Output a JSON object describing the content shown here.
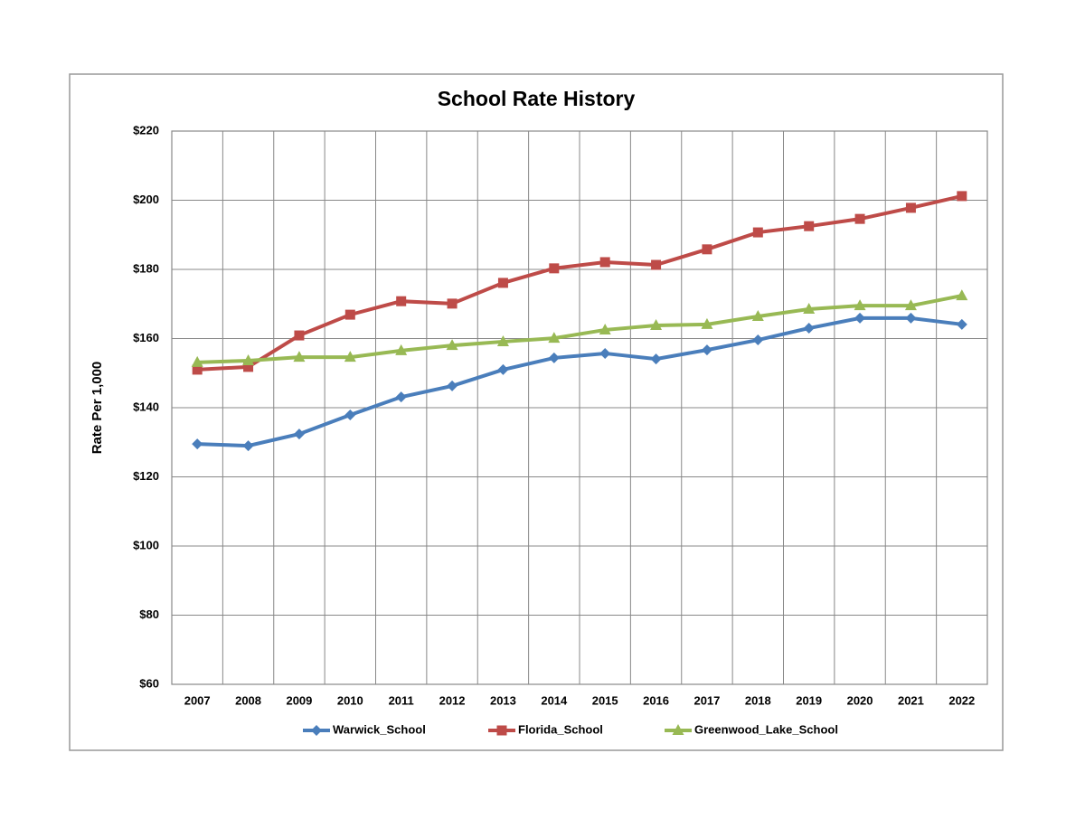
{
  "chart_data": {
    "type": "line",
    "title": "School Rate History",
    "y_label": "Rate Per 1,000",
    "categories": [
      "2007",
      "2008",
      "2009",
      "2010",
      "2011",
      "2012",
      "2013",
      "2014",
      "2015",
      "2016",
      "2017",
      "2018",
      "2019",
      "2020",
      "2021",
      "2022"
    ],
    "series": [
      {
        "name": "Warwick_School",
        "color": "#4a7ebb",
        "marker": "diamond",
        "values": [
          129.5,
          129,
          132.4,
          137.9,
          143.1,
          146.3,
          151,
          154.4,
          155.7,
          154.1,
          156.7,
          159.6,
          163,
          165.9,
          165.9,
          164.1
        ]
      },
      {
        "name": "Florida_School",
        "color": "#be4b48",
        "marker": "square",
        "values": [
          151,
          151.8,
          160.9,
          166.9,
          170.8,
          170.1,
          176.1,
          180.3,
          182.1,
          181.3,
          185.8,
          190.7,
          192.5,
          194.6,
          197.8,
          201.2
        ]
      },
      {
        "name": "Greenwood_Lake_School",
        "color": "#98b954",
        "marker": "triangle",
        "values": [
          153.1,
          153.6,
          154.6,
          154.6,
          156.5,
          158,
          159.1,
          160.1,
          162.5,
          163.8,
          164.1,
          166.4,
          168.5,
          169.5,
          169.5,
          172.4
        ]
      }
    ],
    "ylim": [
      60,
      220
    ],
    "yticks": [
      {
        "value": 60,
        "label": "$60"
      },
      {
        "value": 80,
        "label": "$80"
      },
      {
        "value": 100,
        "label": "$100"
      },
      {
        "value": 120,
        "label": "$120"
      },
      {
        "value": 140,
        "label": "$140"
      },
      {
        "value": 160,
        "label": "$160"
      },
      {
        "value": 180,
        "label": "$180"
      },
      {
        "value": 200,
        "label": "$200"
      },
      {
        "value": 220,
        "label": "$220"
      }
    ],
    "grid": true,
    "legend": "bottom"
  }
}
